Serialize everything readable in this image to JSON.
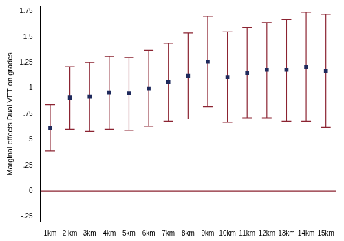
{
  "chart_data": {
    "type": "scatter",
    "y_label": "Marginal effects Dual VET on grades",
    "categories": [
      "1km",
      "2 km",
      "3km",
      "4km",
      "5km",
      "6km",
      "7km",
      "8km",
      "9km",
      "10km",
      "11km",
      "12km",
      "13km",
      "14km",
      "15km"
    ],
    "values": [
      0.61,
      0.91,
      0.92,
      0.96,
      0.95,
      1.0,
      1.06,
      1.12,
      1.26,
      1.11,
      1.15,
      1.18,
      1.18,
      1.21,
      1.17
    ],
    "error_low": [
      0.39,
      0.6,
      0.58,
      0.6,
      0.59,
      0.63,
      0.68,
      0.7,
      0.82,
      0.67,
      0.71,
      0.71,
      0.68,
      0.68,
      0.62
    ],
    "error_high": [
      0.84,
      1.21,
      1.25,
      1.31,
      1.3,
      1.37,
      1.44,
      1.54,
      1.7,
      1.55,
      1.59,
      1.64,
      1.67,
      1.74,
      1.72
    ],
    "reference_line": 0,
    "color": "#1f2a5c",
    "marker": "square",
    "ylim": [
      -0.3,
      1.8
    ],
    "yticks": [
      {
        "value": -0.25,
        "label": "-.25"
      },
      0,
      {
        "value": 0.25,
        "label": ".25"
      },
      {
        "value": 0.5,
        "label": ".5"
      },
      {
        "value": 0.75,
        "label": ".75"
      },
      1,
      1.25,
      1.5,
      1.75
    ],
    "grid": false
  }
}
